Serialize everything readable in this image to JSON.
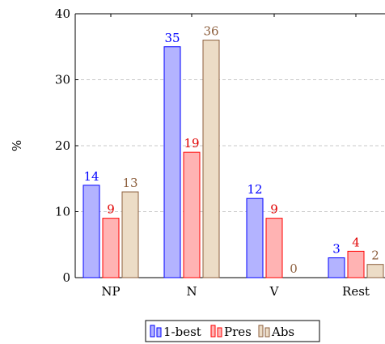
{
  "chart_data": {
    "type": "bar",
    "categories": [
      "NP",
      "N",
      "V",
      "Rest"
    ],
    "series": [
      {
        "name": "1-best",
        "values": [
          14,
          35,
          12,
          3
        ],
        "fill": "#b3b3ff",
        "stroke": "#0000ff",
        "label_color": "#0000ff"
      },
      {
        "name": "Pres",
        "values": [
          9,
          19,
          9,
          4
        ],
        "fill": "#ffb3b3",
        "stroke": "#ff0000",
        "label_color": "#e00000"
      },
      {
        "name": "Abs",
        "values": [
          13,
          36,
          0,
          2
        ],
        "fill": "#ecdcc6",
        "stroke": "#8c5e3c",
        "label_color": "#8c5e3c"
      }
    ],
    "ylabel": "%",
    "xlabel": "",
    "ylim": [
      0,
      40
    ],
    "yticks": [
      0,
      10,
      20,
      30,
      40
    ],
    "grid": "horizontal-dashed",
    "legend_position": "bottom"
  }
}
